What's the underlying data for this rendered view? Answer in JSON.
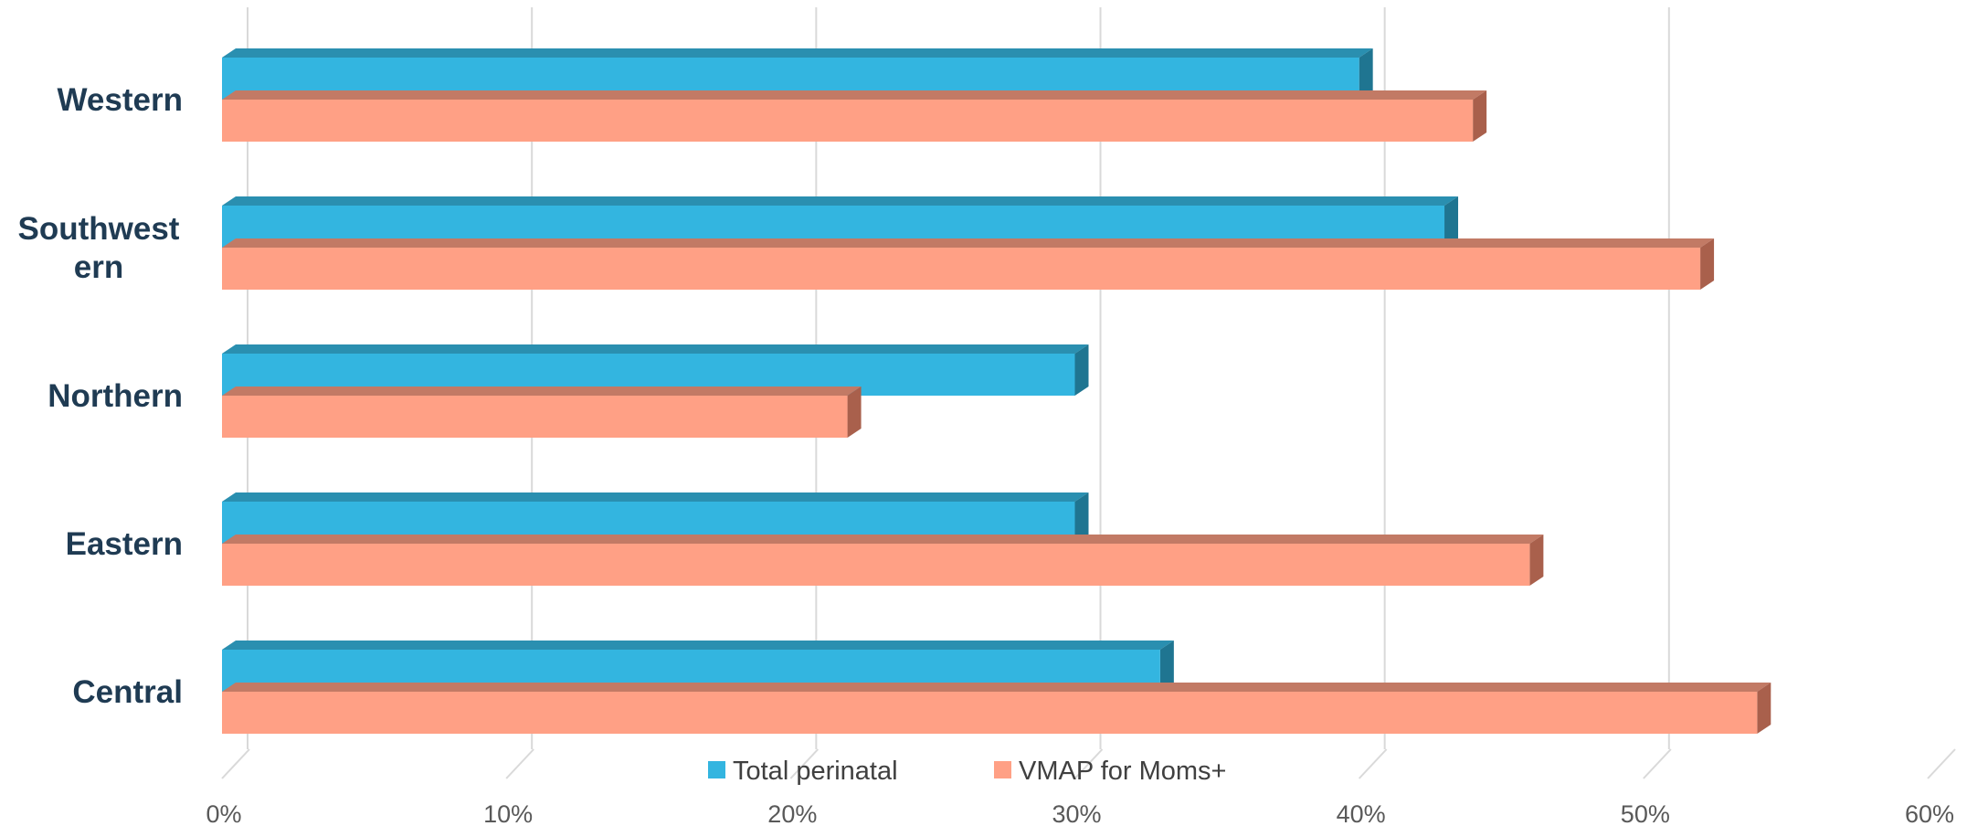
{
  "chart_data": {
    "type": "bar",
    "orientation": "horizontal",
    "style": "3d-clustered",
    "categories": [
      "Western",
      "Southwestern",
      "Northern",
      "Eastern",
      "Central"
    ],
    "category_display": [
      [
        "Western"
      ],
      [
        "Southwest",
        "ern"
      ],
      [
        "Northern"
      ],
      [
        "Eastern"
      ],
      [
        "Central"
      ]
    ],
    "series": [
      {
        "name": "Total perinatal",
        "values": [
          40,
          43,
          30,
          30,
          33
        ],
        "color": "#33b5e0",
        "top_color": "#2a8fb0",
        "side_color": "#1f7591"
      },
      {
        "name": "VMAP for Moms+",
        "values": [
          44,
          52,
          22,
          46,
          54
        ],
        "color": "#ffa085",
        "top_color": "#c27a65",
        "side_color": "#a9604c"
      }
    ],
    "xlim": [
      0,
      60
    ],
    "x_ticks": [
      "0%",
      "10%",
      "20%",
      "30%",
      "40%",
      "50%",
      "60%"
    ],
    "gridlines": true,
    "legend_position": "bottom"
  }
}
